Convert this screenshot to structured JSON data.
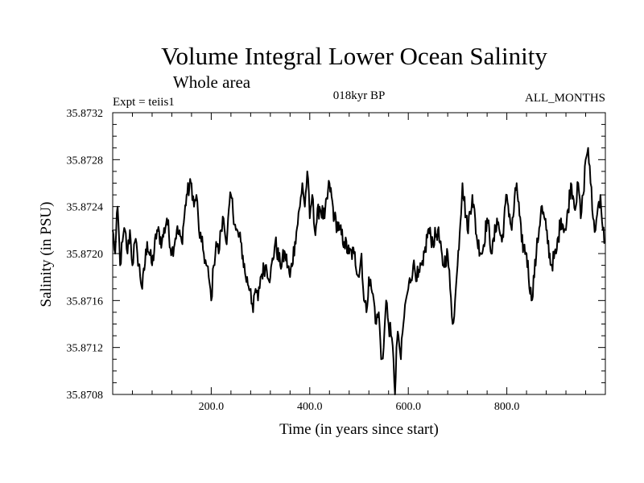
{
  "chart_data": {
    "type": "line",
    "title": "Volume Integral Lower Ocean Salinity",
    "subtitle": "Whole area",
    "left_label": "Expt = teiis1",
    "center_label": "018kyr BP",
    "right_label": "ALL_MONTHS",
    "xlabel": "Time (in years since start)",
    "ylabel": "Salinity (in PSU)",
    "xlim": [
      0,
      1000
    ],
    "ylim": [
      35.8708,
      35.8732
    ],
    "x_ticks": [
      200,
      400,
      600,
      800
    ],
    "x_tick_labels": [
      "200.0",
      "400.0",
      "600.0",
      "800.0"
    ],
    "y_ticks": [
      35.8708,
      35.8712,
      35.8716,
      35.872,
      35.8724,
      35.8728,
      35.8732
    ],
    "y_tick_labels": [
      "35.8708",
      "35.8712",
      "35.8716",
      "35.8720",
      "35.8724",
      "35.8728",
      "35.8732"
    ],
    "grid": false,
    "series": [
      {
        "color": "#000000",
        "x": [
          0,
          5,
          10,
          15,
          20,
          25,
          30,
          35,
          40,
          45,
          50,
          60,
          70,
          80,
          90,
          100,
          110,
          120,
          130,
          140,
          150,
          160,
          165,
          170,
          175,
          180,
          185,
          190,
          195,
          200,
          205,
          210,
          215,
          220,
          225,
          230,
          240,
          250,
          260,
          270,
          280,
          285,
          290,
          295,
          300,
          310,
          320,
          330,
          340,
          350,
          360,
          370,
          380,
          385,
          390,
          395,
          400,
          405,
          410,
          420,
          430,
          440,
          450,
          460,
          470,
          480,
          490,
          500,
          505,
          510,
          515,
          520,
          525,
          530,
          535,
          540,
          545,
          550,
          555,
          560,
          565,
          570,
          573,
          576,
          580,
          585,
          590,
          595,
          600,
          610,
          620,
          630,
          640,
          650,
          660,
          670,
          680,
          685,
          690,
          695,
          700,
          710,
          720,
          730,
          740,
          750,
          760,
          770,
          780,
          790,
          800,
          810,
          820,
          830,
          840,
          850,
          860,
          870,
          880,
          890,
          900,
          910,
          920,
          930,
          940,
          945,
          950,
          955,
          960,
          965,
          970,
          975,
          980,
          985,
          990,
          995,
          999
        ],
        "y": [
          35.8722,
          35.872,
          35.8724,
          35.8719,
          35.8721,
          35.8722,
          35.872,
          35.8722,
          35.8719,
          35.8721,
          35.872,
          35.8717,
          35.8721,
          35.8719,
          35.8722,
          35.8721,
          35.8723,
          35.872,
          35.8722,
          35.8721,
          35.8725,
          35.8726,
          35.8724,
          35.8725,
          35.8722,
          35.8721,
          35.872,
          35.8719,
          35.8718,
          35.8716,
          35.8719,
          35.8721,
          35.872,
          35.8722,
          35.8723,
          35.8721,
          35.8725,
          35.8722,
          35.8721,
          35.8718,
          35.8717,
          35.8715,
          35.8717,
          35.8716,
          35.8718,
          35.8719,
          35.8718,
          35.8721,
          35.8719,
          35.872,
          35.8718,
          35.8721,
          35.8724,
          35.8726,
          35.8724,
          35.8727,
          35.8723,
          35.8725,
          35.8722,
          35.8724,
          35.8723,
          35.8726,
          35.8723,
          35.8722,
          35.8721,
          35.872,
          35.872,
          35.8718,
          35.872,
          35.8716,
          35.8715,
          35.8718,
          35.8717,
          35.8716,
          35.8714,
          35.8715,
          35.8711,
          35.8712,
          35.8716,
          35.8714,
          35.8713,
          35.8711,
          35.8708,
          35.8712,
          35.8713,
          35.8711,
          35.8714,
          35.8716,
          35.8717,
          35.8719,
          35.8718,
          35.8719,
          35.8722,
          35.8721,
          35.8722,
          35.8719,
          35.872,
          35.8717,
          35.8714,
          35.8716,
          35.8719,
          35.8726,
          35.8722,
          35.8725,
          35.8721,
          35.872,
          35.8723,
          35.872,
          35.8723,
          35.8721,
          35.8725,
          35.8722,
          35.8726,
          35.8721,
          35.872,
          35.8716,
          35.872,
          35.8724,
          35.8722,
          35.8719,
          35.872,
          35.8723,
          35.8722,
          35.8726,
          35.8724,
          35.8726,
          35.8723,
          35.8725,
          35.8728,
          35.8729,
          35.8726,
          35.8723,
          35.8722,
          35.8724,
          35.8725,
          35.8722,
          35.8721
        ]
      }
    ]
  }
}
